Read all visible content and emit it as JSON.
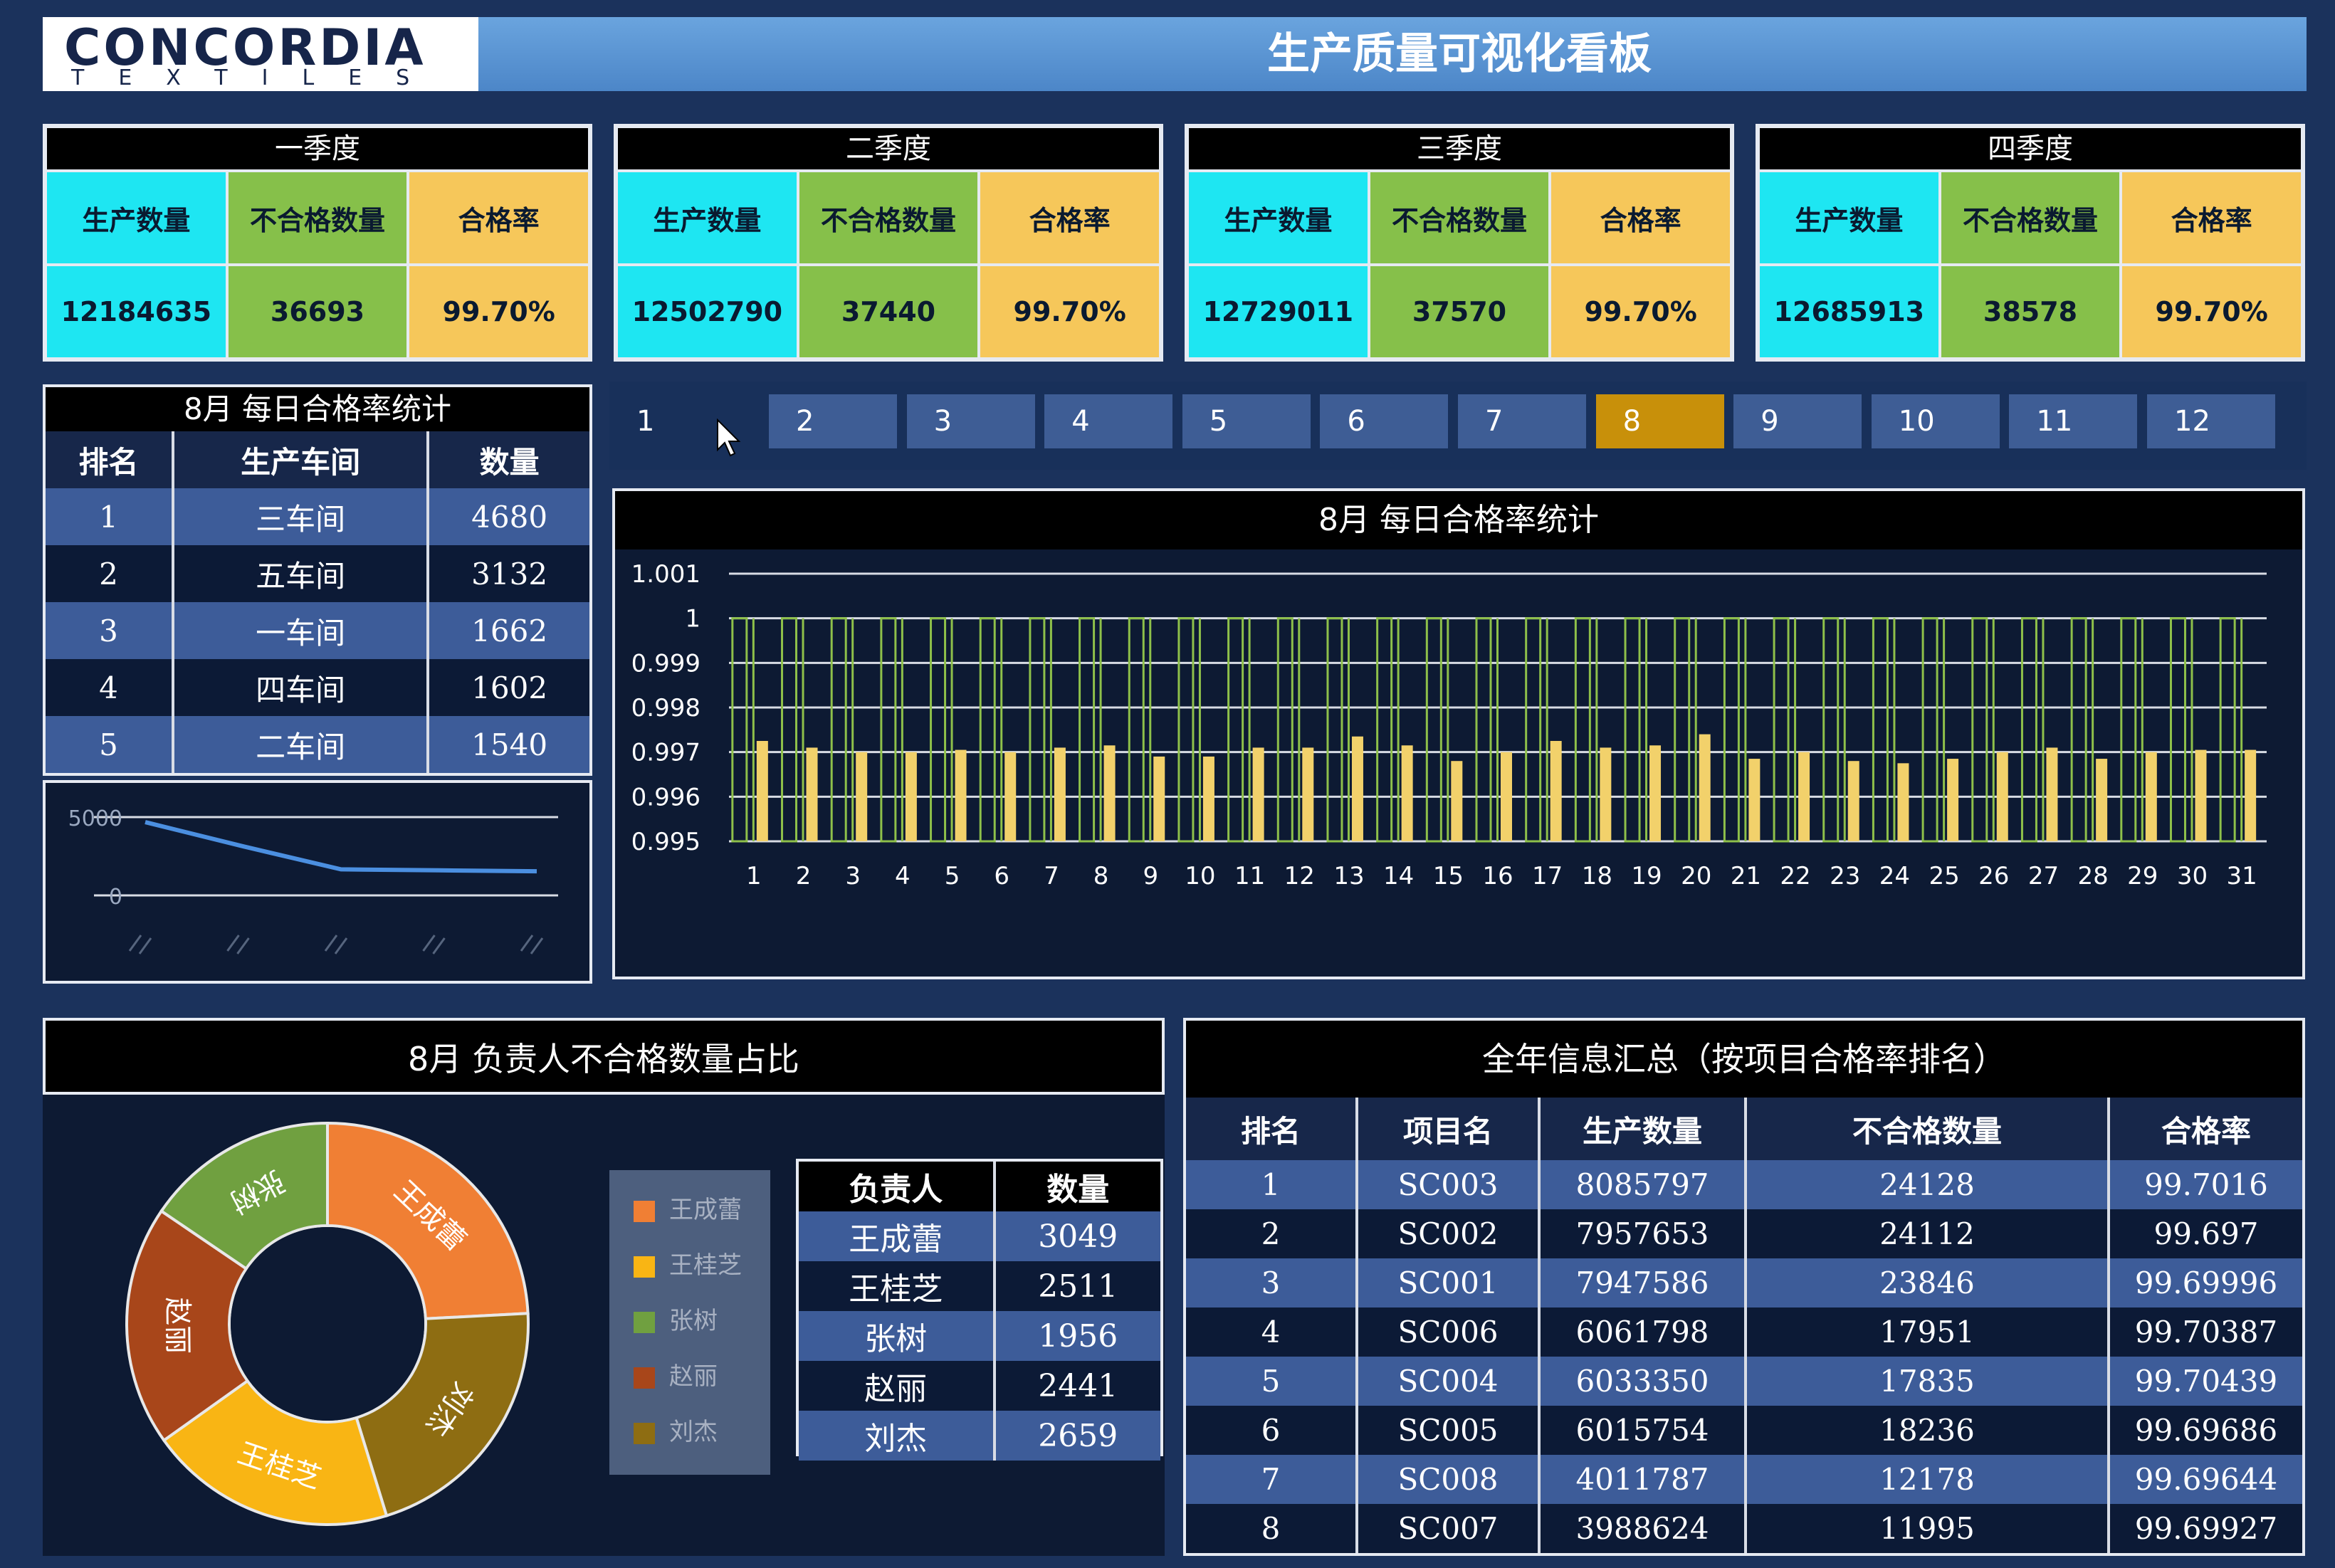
{
  "header": {
    "logo_main": "CONCORDIA",
    "logo_sub": "TEXTILES",
    "title": "生产质量可视化看板"
  },
  "quarters": [
    {
      "title": "一季度",
      "h1": "生产数量",
      "h2": "不合格数量",
      "h3": "合格率",
      "production": "12184635",
      "defects": "36693",
      "rate": "99.70%"
    },
    {
      "title": "二季度",
      "h1": "生产数量",
      "h2": "不合格数量",
      "h3": "合格率",
      "production": "12502790",
      "defects": "37440",
      "rate": "99.70%"
    },
    {
      "title": "三季度",
      "h1": "生产数量",
      "h2": "不合格数量",
      "h3": "合格率",
      "production": "12729011",
      "defects": "37570",
      "rate": "99.70%"
    },
    {
      "title": "四季度",
      "h1": "生产数量",
      "h2": "不合格数量",
      "h3": "合格率",
      "production": "12685913",
      "defects": "38578",
      "rate": "99.70%"
    }
  ],
  "workshop_rank": {
    "title": "8月 每日合格率统计",
    "headers": [
      "排名",
      "生产车间",
      "数量"
    ],
    "rows": [
      [
        "1",
        "三车间",
        "4680"
      ],
      [
        "2",
        "五车间",
        "3132"
      ],
      [
        "3",
        "一车间",
        "1662"
      ],
      [
        "4",
        "四车间",
        "1602"
      ],
      [
        "5",
        "二车间",
        "1540"
      ]
    ]
  },
  "mini_chart": {
    "type": "line",
    "y_ticks": [
      "5000",
      "0"
    ],
    "ylim": [
      0,
      5000
    ],
    "values": [
      4680,
      3132,
      1662,
      1602,
      1540
    ]
  },
  "months": {
    "items": [
      "1",
      "2",
      "3",
      "4",
      "5",
      "6",
      "7",
      "8",
      "9",
      "10",
      "11",
      "12"
    ],
    "active": "8"
  },
  "chart_data": {
    "type": "bar",
    "title": "8月 每日合格率统计",
    "categories": [
      "1",
      "2",
      "3",
      "4",
      "5",
      "6",
      "7",
      "8",
      "9",
      "10",
      "11",
      "12",
      "13",
      "14",
      "15",
      "16",
      "17",
      "18",
      "19",
      "20",
      "21",
      "22",
      "23",
      "24",
      "25",
      "26",
      "27",
      "28",
      "29",
      "30",
      "31"
    ],
    "series": [
      {
        "color": "#f2d16b",
        "values": [
          0.99725,
          0.9971,
          0.997,
          0.997,
          0.99705,
          0.997,
          0.9971,
          0.99715,
          0.9969,
          0.9969,
          0.9971,
          0.9971,
          0.99735,
          0.99715,
          0.9968,
          0.997,
          0.99725,
          0.9971,
          0.99715,
          0.9974,
          0.99685,
          0.997,
          0.9968,
          0.99675,
          0.99685,
          0.997,
          0.9971,
          0.99685,
          0.997,
          0.99705,
          0.99705
        ]
      },
      {
        "color": "#8ec04a",
        "values": [
          1,
          1,
          1,
          1,
          1,
          1,
          1,
          1,
          1,
          1,
          1,
          1,
          1,
          1,
          1,
          1,
          1,
          1,
          1,
          1,
          1,
          1,
          1,
          1,
          1,
          1,
          1,
          1,
          1,
          1,
          1
        ]
      }
    ],
    "y_ticks": [
      "1.001",
      "1",
      "0.999",
      "0.998",
      "0.997",
      "0.996",
      "0.995"
    ],
    "ylim": [
      0.995,
      1.001
    ]
  },
  "owner_pie": {
    "title": "8月 负责人不合格数量占比",
    "slices": [
      {
        "name": "王成蕾",
        "value": 3049,
        "color": "#f07f34"
      },
      {
        "name": "刘杰",
        "value": 2659,
        "color": "#8e6d12"
      },
      {
        "name": "王桂芝",
        "value": 2511,
        "color": "#f9b514"
      },
      {
        "name": "赵丽",
        "value": 2441,
        "color": "#a8461a"
      },
      {
        "name": "张树",
        "value": 1956,
        "color": "#70a040"
      }
    ],
    "legend": [
      {
        "name": "王成蕾",
        "color": "#f07f34"
      },
      {
        "name": "王桂芝",
        "color": "#f9b514"
      },
      {
        "name": "张树",
        "color": "#70a040"
      },
      {
        "name": "赵丽",
        "color": "#a8461a"
      },
      {
        "name": "刘杰",
        "color": "#8e6d12"
      }
    ]
  },
  "owner_table": {
    "headers": [
      "负责人",
      "数量"
    ],
    "rows": [
      [
        "王成蕾",
        "3049"
      ],
      [
        "王桂芝",
        "2511"
      ],
      [
        "张树",
        "1956"
      ],
      [
        "赵丽",
        "2441"
      ],
      [
        "刘杰",
        "2659"
      ]
    ]
  },
  "summary": {
    "title": "全年信息汇总（按项目合格率排名）",
    "headers": [
      "排名",
      "项目名",
      "生产数量",
      "不合格数量",
      "合格率"
    ],
    "rows": [
      [
        "1",
        "SC003",
        "8085797",
        "24128",
        "99.7016"
      ],
      [
        "2",
        "SC002",
        "7957653",
        "24112",
        "99.697"
      ],
      [
        "3",
        "SC001",
        "7947586",
        "23846",
        "99.69996"
      ],
      [
        "4",
        "SC006",
        "6061798",
        "17951",
        "99.70387"
      ],
      [
        "5",
        "SC004",
        "6033350",
        "17835",
        "99.70439"
      ],
      [
        "6",
        "SC005",
        "6015754",
        "18236",
        "99.69686"
      ],
      [
        "7",
        "SC008",
        "4011787",
        "12178",
        "99.69644"
      ],
      [
        "8",
        "SC007",
        "3988624",
        "11995",
        "99.69927"
      ]
    ]
  }
}
